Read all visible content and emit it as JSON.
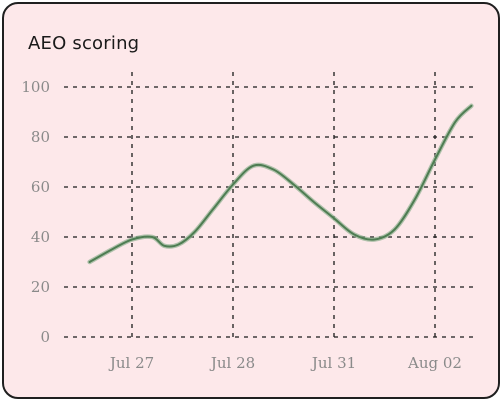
{
  "chart_data": {
    "type": "line",
    "title": "AEO scoring",
    "xlabel": "",
    "ylabel": "",
    "ylim": [
      0,
      100
    ],
    "yticks": [
      0,
      20,
      40,
      60,
      80,
      100
    ],
    "categories": [
      "Jul 27",
      "Jul 28",
      "Jul 31",
      "Aug 02"
    ],
    "grid": true,
    "line_color": "#4e7d52",
    "points": [
      {
        "x": -0.42,
        "y": 30
      },
      {
        "x": -0.2,
        "y": 35
      },
      {
        "x": 0.0,
        "y": 39
      },
      {
        "x": 0.2,
        "y": 40
      },
      {
        "x": 0.32,
        "y": 36.5
      },
      {
        "x": 0.46,
        "y": 37
      },
      {
        "x": 0.62,
        "y": 42
      },
      {
        "x": 0.8,
        "y": 51
      },
      {
        "x": 1.0,
        "y": 61
      },
      {
        "x": 1.2,
        "y": 68.5
      },
      {
        "x": 1.4,
        "y": 67
      },
      {
        "x": 1.6,
        "y": 61
      },
      {
        "x": 1.8,
        "y": 54
      },
      {
        "x": 2.0,
        "y": 47.5
      },
      {
        "x": 2.2,
        "y": 41
      },
      {
        "x": 2.4,
        "y": 39
      },
      {
        "x": 2.6,
        "y": 43
      },
      {
        "x": 2.8,
        "y": 55
      },
      {
        "x": 3.0,
        "y": 71
      },
      {
        "x": 3.2,
        "y": 86
      },
      {
        "x": 3.36,
        "y": 92.5
      }
    ]
  }
}
